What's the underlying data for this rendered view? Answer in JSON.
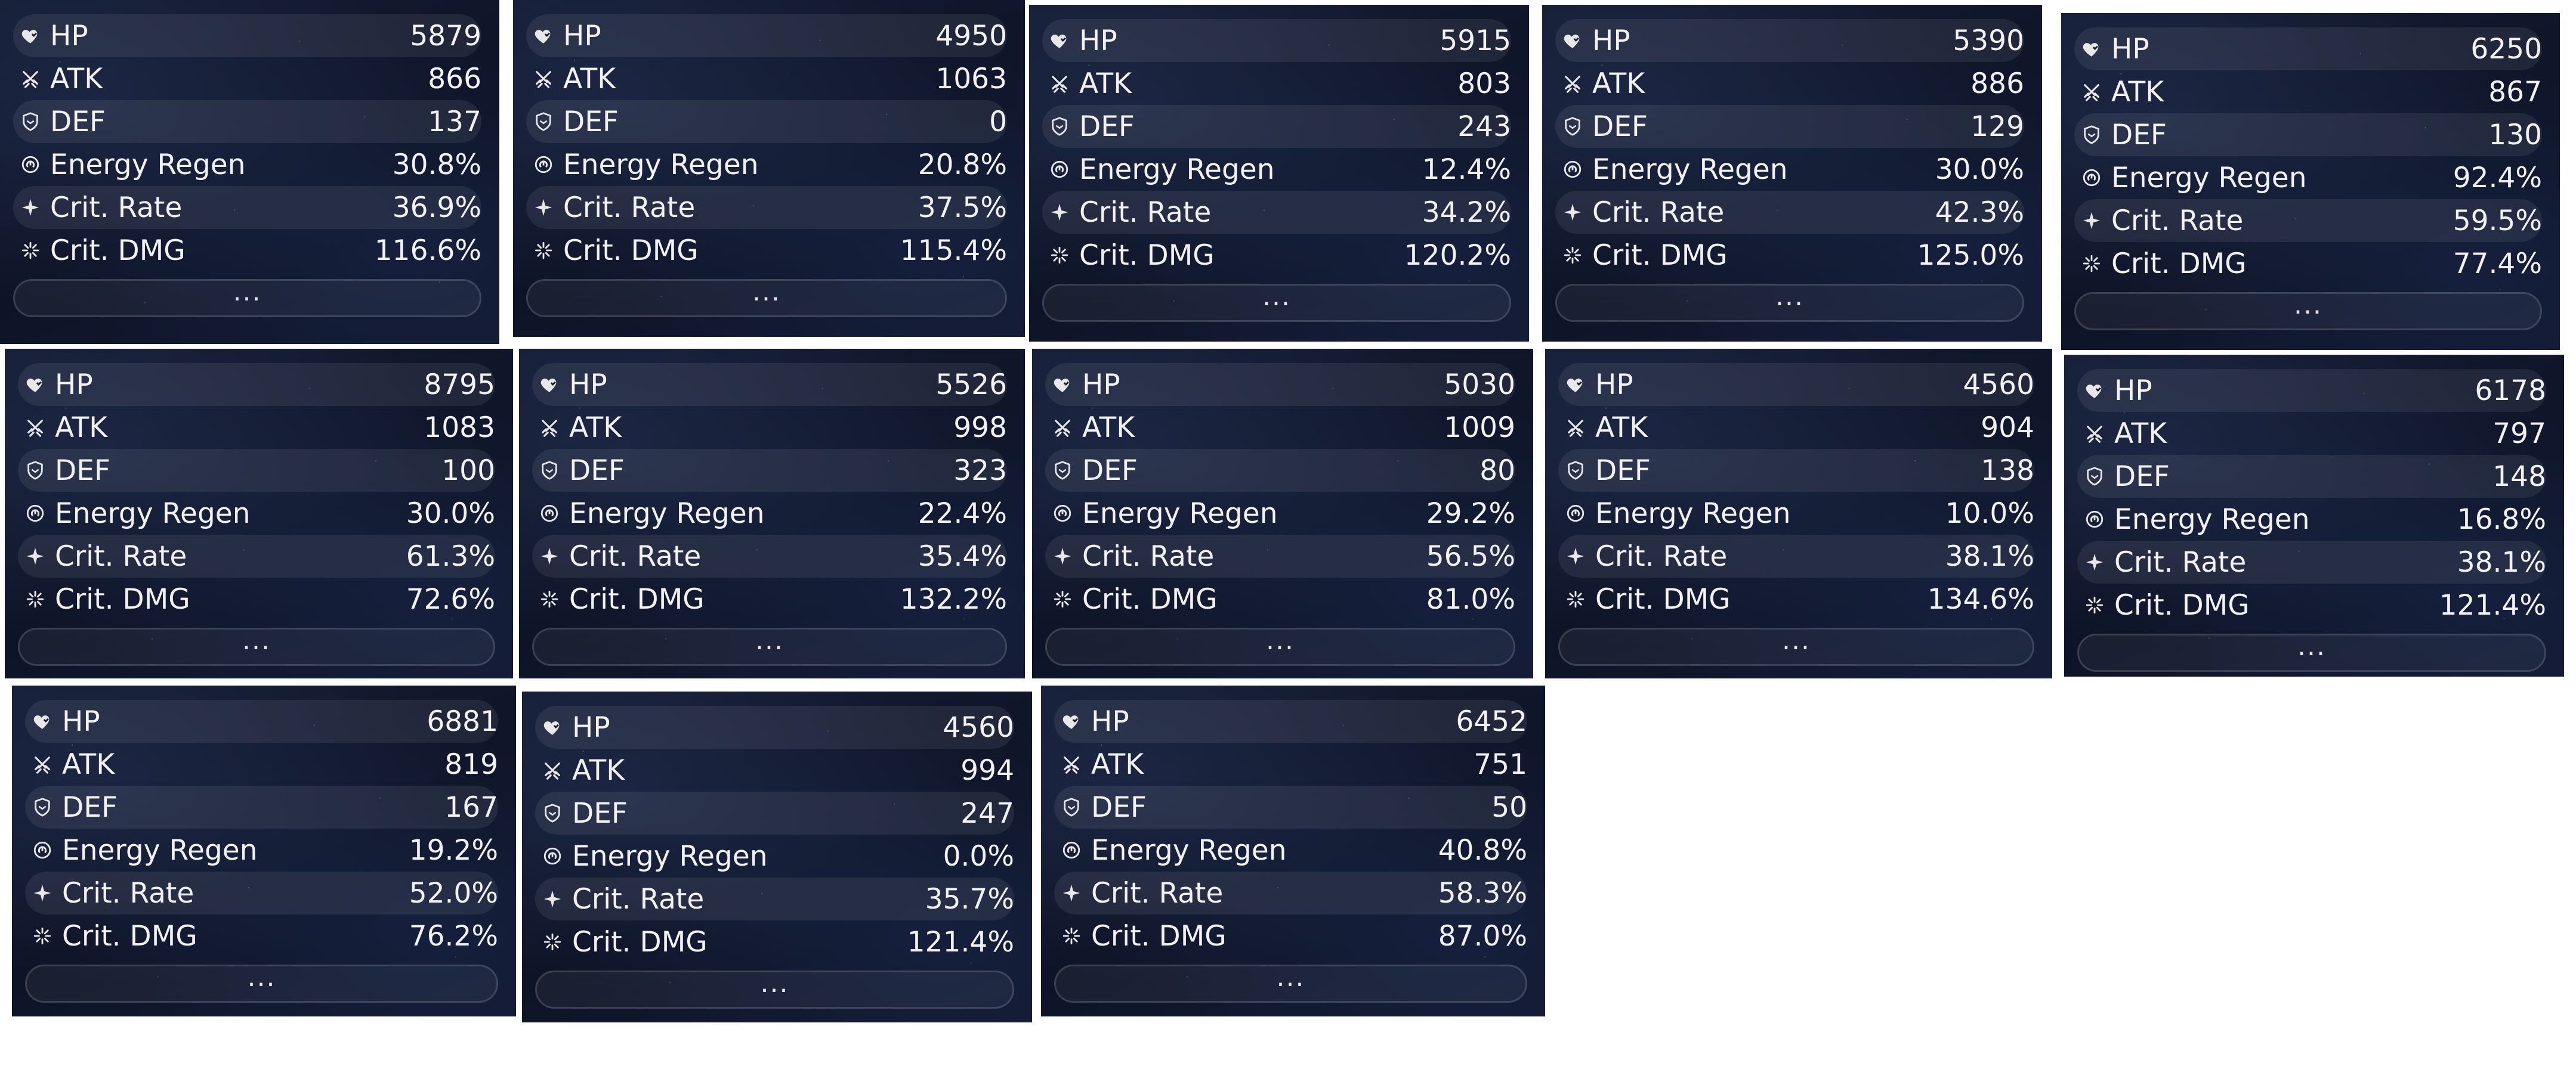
{
  "labels": {
    "hp": "HP",
    "atk": "ATK",
    "def": "DEF",
    "er": "Energy Regen",
    "cr": "Crit. Rate",
    "cd": "Crit. DMG",
    "more": "..."
  },
  "icons": [
    "heart-icon",
    "crossed-swords-icon",
    "shield-icon",
    "energy-icon",
    "star-icon",
    "burst-icon"
  ],
  "colors": {
    "panel_bg": "#111830",
    "text": "#f2f2f2"
  },
  "panels": [
    {
      "hp": "5879",
      "atk": "866",
      "def": "137",
      "er": "30.8%",
      "cr": "36.9%",
      "cd": "116.6%"
    },
    {
      "hp": "4950",
      "atk": "1063",
      "def": "0",
      "er": "20.8%",
      "cr": "37.5%",
      "cd": "115.4%"
    },
    {
      "hp": "5915",
      "atk": "803",
      "def": "243",
      "er": "12.4%",
      "cr": "34.2%",
      "cd": "120.2%"
    },
    {
      "hp": "5390",
      "atk": "886",
      "def": "129",
      "er": "30.0%",
      "cr": "42.3%",
      "cd": "125.0%"
    },
    {
      "hp": "6250",
      "atk": "867",
      "def": "130",
      "er": "92.4%",
      "cr": "59.5%",
      "cd": "77.4%"
    },
    {
      "hp": "8795",
      "atk": "1083",
      "def": "100",
      "er": "30.0%",
      "cr": "61.3%",
      "cd": "72.6%"
    },
    {
      "hp": "5526",
      "atk": "998",
      "def": "323",
      "er": "22.4%",
      "cr": "35.4%",
      "cd": "132.2%"
    },
    {
      "hp": "5030",
      "atk": "1009",
      "def": "80",
      "er": "29.2%",
      "cr": "56.5%",
      "cd": "81.0%"
    },
    {
      "hp": "4560",
      "atk": "904",
      "def": "138",
      "er": "10.0%",
      "cr": "38.1%",
      "cd": "134.6%"
    },
    {
      "hp": "6178",
      "atk": "797",
      "def": "148",
      "er": "16.8%",
      "cr": "38.1%",
      "cd": "121.4%"
    },
    {
      "hp": "6881",
      "atk": "819",
      "def": "167",
      "er": "19.2%",
      "cr": "52.0%",
      "cd": "76.2%"
    },
    {
      "hp": "4560",
      "atk": "994",
      "def": "247",
      "er": "0.0%",
      "cr": "35.7%",
      "cd": "121.4%"
    },
    {
      "hp": "6452",
      "atk": "751",
      "def": "50",
      "er": "40.8%",
      "cr": "58.3%",
      "cd": "87.0%"
    }
  ]
}
